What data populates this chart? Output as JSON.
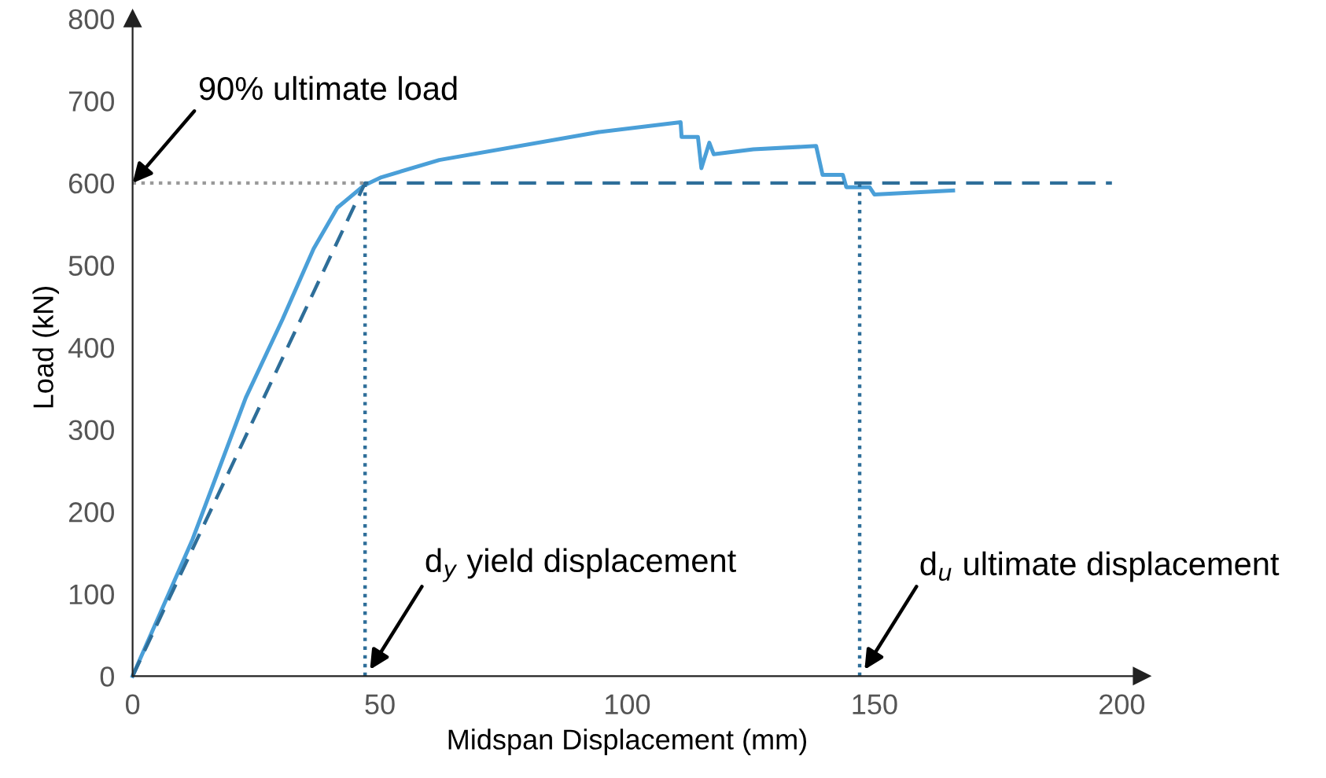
{
  "chart_data": {
    "type": "line",
    "xlabel": "Midspan Displacement (mm)",
    "ylabel": "Load (kN)",
    "xlim": [
      0,
      200
    ],
    "ylim": [
      0,
      800
    ],
    "xticks": [
      0,
      50,
      100,
      150,
      200
    ],
    "yticks": [
      0,
      100,
      200,
      300,
      400,
      500,
      600,
      700,
      800
    ],
    "grid": false,
    "legend": false,
    "series": [
      {
        "color": "#4a9fd8",
        "line_style": "solid",
        "x": [
          0,
          12.1,
          22.9,
          30.3,
          36.6,
          41.4,
          46.8,
          50.3,
          62,
          94.3,
          110.8,
          111,
          114.3,
          115,
          116.6,
          117.5,
          125.5,
          138.2,
          139.5,
          143.6,
          144.3,
          149,
          150,
          165.9
        ],
        "values": [
          0,
          166,
          339,
          434,
          520,
          570,
          597,
          607,
          628,
          662,
          674,
          656,
          656,
          618,
          649,
          635,
          641,
          645,
          610,
          610,
          595,
          595,
          586,
          591
        ]
      },
      {
        "color": "#2e6e99",
        "line_style": "dashed",
        "x": [
          0,
          47,
          198
        ],
        "values": [
          0,
          600,
          600
        ]
      },
      {
        "color": "#999999",
        "line_style": "dotted",
        "x": [
          0,
          47
        ],
        "values": [
          600,
          600
        ]
      },
      {
        "color": "#2e6e99",
        "line_style": "dotted",
        "x": [
          47,
          47
        ],
        "values": [
          0,
          600
        ]
      },
      {
        "color": "#2e6e99",
        "line_style": "dotted",
        "x": [
          147,
          147
        ],
        "values": [
          0,
          600
        ]
      }
    ],
    "annotations": [
      {
        "text": "90% ultimate load",
        "x": 0,
        "y": 600
      },
      {
        "text": "d$_{y}$ yield displacement",
        "x": 48,
        "y": 8
      },
      {
        "text": "d$_{u}$ ultimate displacement",
        "x": 148,
        "y": 8
      }
    ]
  }
}
